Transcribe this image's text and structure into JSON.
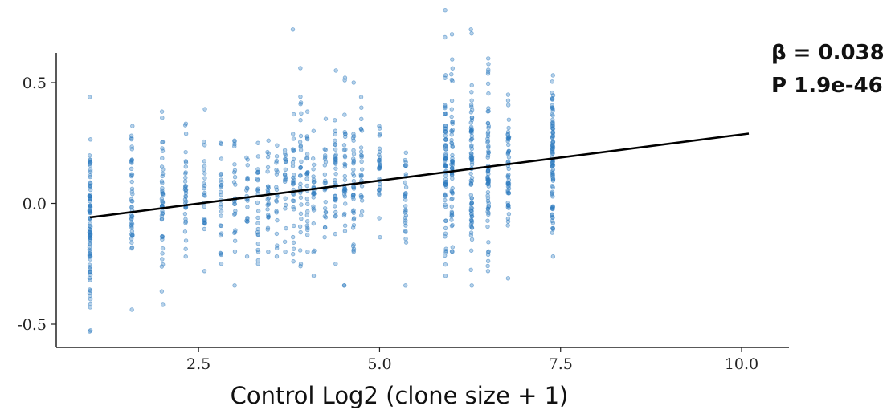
{
  "chart_data": {
    "type": "scatter",
    "title": "",
    "xlabel": "Control Log2 (clone size + 1)",
    "ylabel": "",
    "xlim": [
      0.6,
      10.3
    ],
    "ylim": [
      -0.6,
      0.62
    ],
    "x_ticks": [
      2.5,
      5.0,
      7.5,
      10.0
    ],
    "x_tick_labels": [
      "2.5",
      "5.0",
      "7.5",
      "10.0"
    ],
    "y_ticks": [
      0.5,
      0.0,
      -0.5
    ],
    "y_tick_labels": [
      "0.5",
      "0.0",
      "-0.5"
    ],
    "grid": false,
    "annotations": [
      "β = 0.038",
      "P 1.9e-46"
    ],
    "fit_line": {
      "x": [
        1.0,
        10.1
      ],
      "y": [
        -0.058,
        0.289
      ]
    },
    "point_groups": [
      {
        "x": 1.0,
        "n": 90,
        "y_min": -0.53,
        "y_max": 0.44,
        "center": -0.08,
        "spread": 0.17
      },
      {
        "x": 1.58,
        "n": 45,
        "y_min": -0.44,
        "y_max": 0.32,
        "center": 0.0,
        "spread": 0.15
      },
      {
        "x": 2.0,
        "n": 45,
        "y_min": -0.42,
        "y_max": 0.38,
        "center": 0.0,
        "spread": 0.15
      },
      {
        "x": 2.32,
        "n": 35,
        "y_min": -0.22,
        "y_max": 0.33,
        "center": 0.03,
        "spread": 0.12
      },
      {
        "x": 2.58,
        "n": 25,
        "y_min": -0.28,
        "y_max": 0.39,
        "center": 0.02,
        "spread": 0.12
      },
      {
        "x": 2.81,
        "n": 25,
        "y_min": -0.25,
        "y_max": 0.25,
        "center": 0.02,
        "spread": 0.11
      },
      {
        "x": 3.0,
        "n": 25,
        "y_min": -0.34,
        "y_max": 0.26,
        "center": 0.02,
        "spread": 0.11
      },
      {
        "x": 3.17,
        "n": 20,
        "y_min": -0.22,
        "y_max": 0.19,
        "center": 0.02,
        "spread": 0.1
      },
      {
        "x": 3.32,
        "n": 25,
        "y_min": -0.25,
        "y_max": 0.25,
        "center": 0.03,
        "spread": 0.11
      },
      {
        "x": 3.46,
        "n": 25,
        "y_min": -0.2,
        "y_max": 0.26,
        "center": 0.04,
        "spread": 0.1
      },
      {
        "x": 3.58,
        "n": 20,
        "y_min": -0.22,
        "y_max": 0.24,
        "center": 0.04,
        "spread": 0.1
      },
      {
        "x": 3.7,
        "n": 20,
        "y_min": -0.2,
        "y_max": 0.22,
        "center": 0.05,
        "spread": 0.1
      },
      {
        "x": 3.81,
        "n": 30,
        "y_min": -0.24,
        "y_max": 0.72,
        "center": 0.08,
        "spread": 0.15
      },
      {
        "x": 3.91,
        "n": 30,
        "y_min": -0.26,
        "y_max": 0.56,
        "center": 0.08,
        "spread": 0.15
      },
      {
        "x": 4.0,
        "n": 25,
        "y_min": -0.2,
        "y_max": 0.38,
        "center": 0.06,
        "spread": 0.12
      },
      {
        "x": 4.09,
        "n": 25,
        "y_min": -0.3,
        "y_max": 0.3,
        "center": 0.05,
        "spread": 0.12
      },
      {
        "x": 4.25,
        "n": 25,
        "y_min": -0.14,
        "y_max": 0.35,
        "center": 0.07,
        "spread": 0.11
      },
      {
        "x": 4.39,
        "n": 35,
        "y_min": -0.25,
        "y_max": 0.55,
        "center": 0.08,
        "spread": 0.14
      },
      {
        "x": 4.52,
        "n": 35,
        "y_min": -0.34,
        "y_max": 0.52,
        "center": 0.08,
        "spread": 0.14
      },
      {
        "x": 4.64,
        "n": 35,
        "y_min": -0.2,
        "y_max": 0.5,
        "center": 0.1,
        "spread": 0.13
      },
      {
        "x": 4.75,
        "n": 25,
        "y_min": -0.05,
        "y_max": 0.44,
        "center": 0.18,
        "spread": 0.11
      },
      {
        "x": 5.0,
        "n": 30,
        "y_min": -0.14,
        "y_max": 0.32,
        "center": 0.12,
        "spread": 0.1
      },
      {
        "x": 5.36,
        "n": 30,
        "y_min": -0.34,
        "y_max": 0.21,
        "center": -0.02,
        "spread": 0.12
      },
      {
        "x": 5.91,
        "n": 70,
        "y_min": -0.3,
        "y_max": 0.8,
        "center": 0.15,
        "spread": 0.2
      },
      {
        "x": 6.0,
        "n": 60,
        "y_min": -0.2,
        "y_max": 0.7,
        "center": 0.16,
        "spread": 0.18
      },
      {
        "x": 6.27,
        "n": 80,
        "y_min": -0.34,
        "y_max": 0.72,
        "center": 0.15,
        "spread": 0.2
      },
      {
        "x": 6.5,
        "n": 70,
        "y_min": -0.28,
        "y_max": 0.6,
        "center": 0.14,
        "spread": 0.19
      },
      {
        "x": 6.78,
        "n": 55,
        "y_min": -0.31,
        "y_max": 0.45,
        "center": 0.1,
        "spread": 0.17
      },
      {
        "x": 7.39,
        "n": 90,
        "y_min": -0.22,
        "y_max": 0.53,
        "center": 0.17,
        "spread": 0.15
      }
    ]
  }
}
